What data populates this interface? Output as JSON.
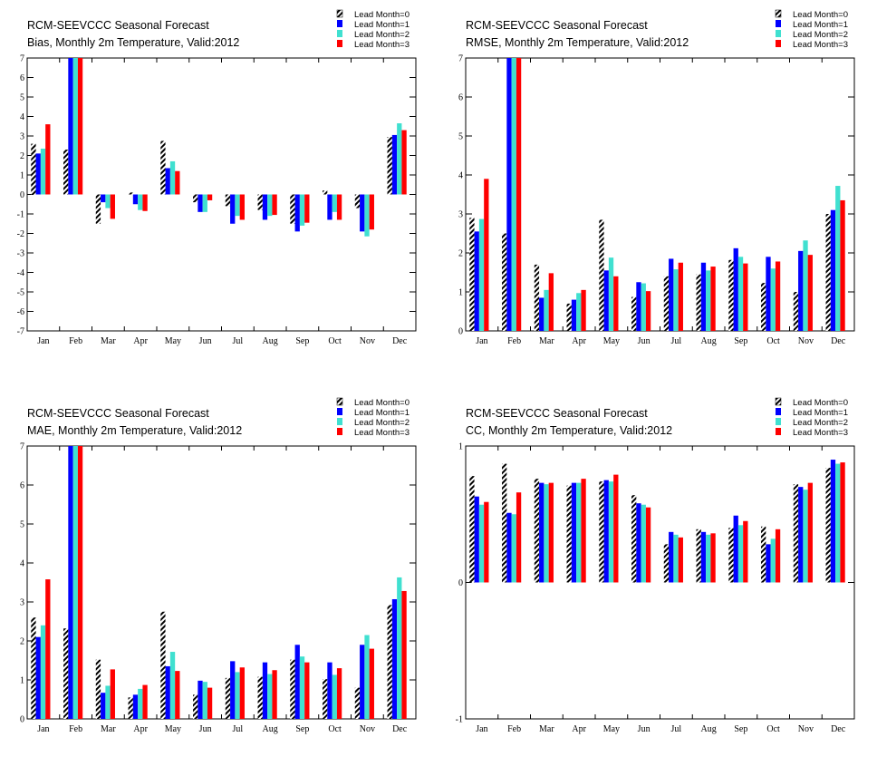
{
  "colors": {
    "lead0_hatch": "#000000",
    "lead1": "#0000ff",
    "lead2": "#40e0d0",
    "lead3": "#ff0000",
    "background": "#ffffff"
  },
  "chart_data": [
    {
      "type": "bar",
      "title": "RCM-SEEVCCC Seasonal Forecast",
      "subtitle": "Bias, Monthly 2m Temperature, Valid:2012",
      "categories": [
        "Jan",
        "Feb",
        "Mar",
        "Apr",
        "May",
        "Jun",
        "Jul",
        "Aug",
        "Sep",
        "Oct",
        "Nov",
        "Dec"
      ],
      "ylim": [
        -7,
        7
      ],
      "yticks": [
        -7,
        -6,
        -5,
        -4,
        -3,
        -2,
        -1,
        0,
        1,
        2,
        3,
        4,
        5,
        6,
        7
      ],
      "ytick_labels": [
        "-7",
        "-6",
        "-5",
        "-4",
        "-3",
        "-2",
        "-1",
        "0",
        "1",
        "2",
        "3",
        "4",
        "5",
        "6",
        "7"
      ],
      "legend_position": "top-right",
      "series": [
        {
          "name": "Lead Month=0",
          "values": [
            2.6,
            2.3,
            -1.5,
            0.1,
            2.75,
            -0.4,
            -0.6,
            -0.8,
            -1.5,
            0.2,
            -0.7,
            2.95
          ]
        },
        {
          "name": "Lead Month=1",
          "values": [
            2.1,
            7.0,
            -0.4,
            -0.5,
            1.35,
            -0.9,
            -1.5,
            -1.3,
            -1.9,
            -1.3,
            -1.9,
            3.05
          ]
        },
        {
          "name": "Lead Month=2",
          "values": [
            2.35,
            7.0,
            -0.7,
            -0.8,
            1.7,
            -0.9,
            -1.1,
            -1.1,
            -1.6,
            -0.9,
            -2.15,
            3.65
          ]
        },
        {
          "name": "Lead Month=3",
          "values": [
            3.6,
            7.0,
            -1.25,
            -0.85,
            1.2,
            -0.3,
            -1.3,
            -1.05,
            -1.45,
            -1.3,
            -1.8,
            3.3
          ]
        }
      ]
    },
    {
      "type": "bar",
      "title": "RCM-SEEVCCC Seasonal Forecast",
      "subtitle": "RMSE, Monthly 2m Temperature, Valid:2012",
      "categories": [
        "Jan",
        "Feb",
        "Mar",
        "Apr",
        "May",
        "Jun",
        "Jul",
        "Aug",
        "Sep",
        "Oct",
        "Nov",
        "Dec"
      ],
      "ylim": [
        0,
        7
      ],
      "yticks": [
        0,
        1,
        2,
        3,
        4,
        5,
        6,
        7
      ],
      "ytick_labels": [
        "0",
        "1",
        "2",
        "3",
        "4",
        "5",
        "6",
        "7"
      ],
      "legend_position": "top-right",
      "series": [
        {
          "name": "Lead Month=0",
          "values": [
            2.9,
            2.5,
            1.7,
            0.7,
            2.85,
            0.87,
            1.4,
            1.45,
            1.82,
            1.23,
            1.0,
            3.0
          ]
        },
        {
          "name": "Lead Month=1",
          "values": [
            2.55,
            7.0,
            0.85,
            0.8,
            1.55,
            1.25,
            1.85,
            1.75,
            2.12,
            1.9,
            2.05,
            3.1
          ]
        },
        {
          "name": "Lead Month=2",
          "values": [
            2.87,
            7.0,
            1.05,
            0.97,
            1.88,
            1.22,
            1.58,
            1.55,
            1.9,
            1.6,
            2.32,
            3.72
          ]
        },
        {
          "name": "Lead Month=3",
          "values": [
            3.9,
            7.0,
            1.48,
            1.05,
            1.4,
            1.02,
            1.75,
            1.65,
            1.73,
            1.78,
            1.95,
            3.35
          ]
        }
      ]
    },
    {
      "type": "bar",
      "title": "RCM-SEEVCCC Seasonal Forecast",
      "subtitle": "MAE, Monthly 2m Temperature, Valid:2012",
      "categories": [
        "Jan",
        "Feb",
        "Mar",
        "Apr",
        "May",
        "Jun",
        "Jul",
        "Aug",
        "Sep",
        "Oct",
        "Nov",
        "Dec"
      ],
      "ylim": [
        0,
        7
      ],
      "yticks": [
        0,
        1,
        2,
        3,
        4,
        5,
        6,
        7
      ],
      "ytick_labels": [
        "0",
        "1",
        "2",
        "3",
        "4",
        "5",
        "6",
        "7"
      ],
      "legend_position": "top-right",
      "series": [
        {
          "name": "Lead Month=0",
          "values": [
            2.6,
            2.32,
            1.52,
            0.55,
            2.75,
            0.62,
            1.05,
            1.08,
            1.52,
            1.02,
            0.8,
            2.92
          ]
        },
        {
          "name": "Lead Month=1",
          "values": [
            2.1,
            7.0,
            0.67,
            0.62,
            1.35,
            0.98,
            1.48,
            1.45,
            1.9,
            1.45,
            1.9,
            3.07
          ]
        },
        {
          "name": "Lead Month=2",
          "values": [
            2.4,
            7.0,
            0.85,
            0.77,
            1.72,
            0.95,
            1.2,
            1.15,
            1.6,
            1.13,
            2.15,
            3.63
          ]
        },
        {
          "name": "Lead Month=3",
          "values": [
            3.58,
            7.0,
            1.27,
            0.87,
            1.23,
            0.8,
            1.32,
            1.25,
            1.45,
            1.3,
            1.8,
            3.28
          ]
        }
      ]
    },
    {
      "type": "bar",
      "title": "RCM-SEEVCCC Seasonal Forecast",
      "subtitle": "CC, Monthly 2m Temperature, Valid:2012",
      "categories": [
        "Jan",
        "Feb",
        "Mar",
        "Apr",
        "May",
        "Jun",
        "Jul",
        "Aug",
        "Sep",
        "Oct",
        "Nov",
        "Dec"
      ],
      "ylim": [
        -1,
        1
      ],
      "yticks": [
        -1,
        0,
        1
      ],
      "ytick_labels": [
        "-1",
        "0",
        "1"
      ],
      "legend_position": "top-right",
      "series": [
        {
          "name": "Lead Month=0",
          "values": [
            0.78,
            0.87,
            0.76,
            0.71,
            0.74,
            0.64,
            0.28,
            0.39,
            0.4,
            0.41,
            0.72,
            0.84
          ]
        },
        {
          "name": "Lead Month=1",
          "values": [
            0.63,
            0.51,
            0.73,
            0.73,
            0.75,
            0.58,
            0.37,
            0.37,
            0.49,
            0.28,
            0.7,
            0.9
          ]
        },
        {
          "name": "Lead Month=2",
          "values": [
            0.57,
            0.5,
            0.72,
            0.73,
            0.74,
            0.57,
            0.35,
            0.35,
            0.42,
            0.32,
            0.68,
            0.87
          ]
        },
        {
          "name": "Lead Month=3",
          "values": [
            0.59,
            0.66,
            0.73,
            0.76,
            0.79,
            0.55,
            0.33,
            0.36,
            0.45,
            0.39,
            0.73,
            0.88
          ]
        }
      ]
    }
  ]
}
